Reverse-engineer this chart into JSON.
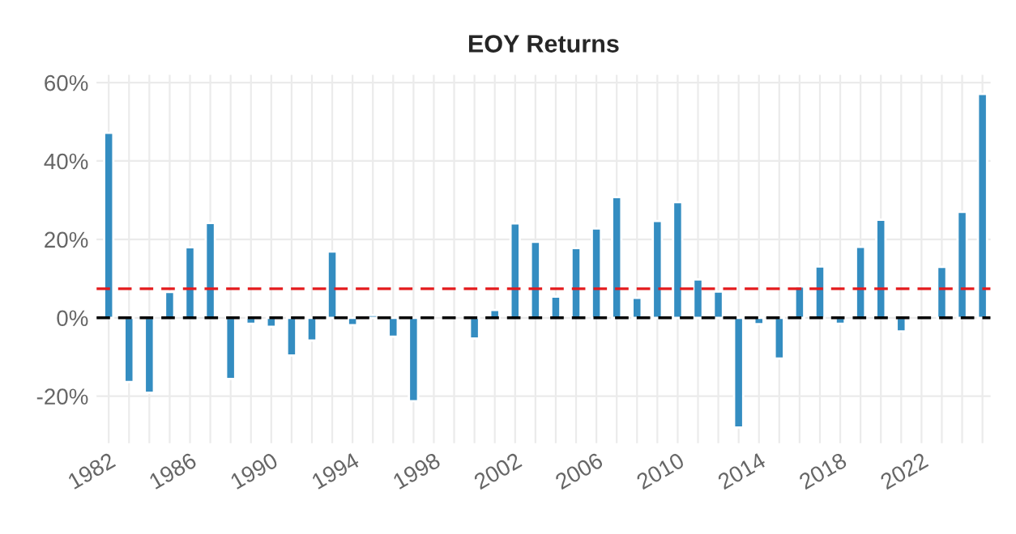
{
  "chart_data": {
    "type": "bar",
    "title": "EOY Returns",
    "x": [
      1982,
      1983,
      1984,
      1985,
      1986,
      1987,
      1988,
      1989,
      1990,
      1991,
      1992,
      1993,
      1994,
      1995,
      1996,
      1997,
      1998,
      1999,
      2000,
      2001,
      2002,
      2003,
      2004,
      2005,
      2006,
      2007,
      2008,
      2009,
      2010,
      2011,
      2012,
      2013,
      2014,
      2015,
      2016,
      2017,
      2018,
      2019,
      2020,
      2021,
      2022,
      2023,
      2024,
      2025
    ],
    "series": [
      {
        "color": "#348dc1",
        "values": [
          47.2,
          -16.4,
          -19.1,
          6.6,
          18.0,
          24.2,
          -15.6,
          -1.5,
          -2.3,
          -9.6,
          -5.8,
          16.9,
          -1.9,
          0.7,
          -4.8,
          -21.3,
          null,
          null,
          -5.3,
          2.0,
          24.1,
          19.4,
          5.4,
          17.8,
          22.8,
          30.8,
          5.1,
          24.7,
          29.5,
          9.8,
          6.7,
          -28.0,
          -1.6,
          -10.4,
          8.0,
          13.1,
          -1.5,
          18.1,
          25.0,
          -3.5,
          null,
          13.0,
          27.0,
          57.1
        ]
      }
    ],
    "xlim": [
      1981.4,
      2025.4
    ],
    "xticks": [
      1982,
      {
        "value": 1983,
        "label": null
      },
      {
        "value": 1984,
        "label": null
      },
      {
        "value": 1985,
        "label": null
      },
      1986,
      {
        "value": 1987,
        "label": null
      },
      {
        "value": 1988,
        "label": null
      },
      {
        "value": 1989,
        "label": null
      },
      1990,
      {
        "value": 1991,
        "label": null
      },
      {
        "value": 1992,
        "label": null
      },
      {
        "value": 1993,
        "label": null
      },
      1994,
      {
        "value": 1995,
        "label": null
      },
      {
        "value": 1996,
        "label": null
      },
      {
        "value": 1997,
        "label": null
      },
      1998,
      {
        "value": 1999,
        "label": null
      },
      {
        "value": 2000,
        "label": null
      },
      {
        "value": 2001,
        "label": null
      },
      2002,
      {
        "value": 2003,
        "label": null
      },
      {
        "value": 2004,
        "label": null
      },
      {
        "value": 2005,
        "label": null
      },
      2006,
      {
        "value": 2007,
        "label": null
      },
      {
        "value": 2008,
        "label": null
      },
      {
        "value": 2009,
        "label": null
      },
      2010,
      {
        "value": 2011,
        "label": null
      },
      {
        "value": 2012,
        "label": null
      },
      {
        "value": 2013,
        "label": null
      },
      2014,
      {
        "value": 2015,
        "label": null
      },
      {
        "value": 2016,
        "label": null
      },
      {
        "value": 2017,
        "label": null
      },
      2018,
      {
        "value": 2019,
        "label": null
      },
      {
        "value": 2020,
        "label": null
      },
      {
        "value": 2021,
        "label": null
      },
      2022,
      {
        "value": 2023,
        "label": null
      },
      {
        "value": 2024,
        "label": null
      },
      {
        "value": 2025,
        "label": null
      }
    ],
    "ylim": [
      -32,
      62
    ],
    "yticks": [
      {
        "value": -20,
        "label": "-20%"
      },
      {
        "value": 0,
        "label": "0%"
      },
      {
        "value": 20,
        "label": "20%"
      },
      {
        "value": 40,
        "label": "40%"
      },
      {
        "value": 60,
        "label": "60%"
      }
    ],
    "ref_lines": [
      {
        "axis": "y",
        "value": 7.4,
        "color": "#e41a1c",
        "line_style": "dashed"
      },
      {
        "axis": "y",
        "value": 0,
        "color": "#000000",
        "line_style": "dashed"
      }
    ],
    "grid": true,
    "legend": false
  }
}
